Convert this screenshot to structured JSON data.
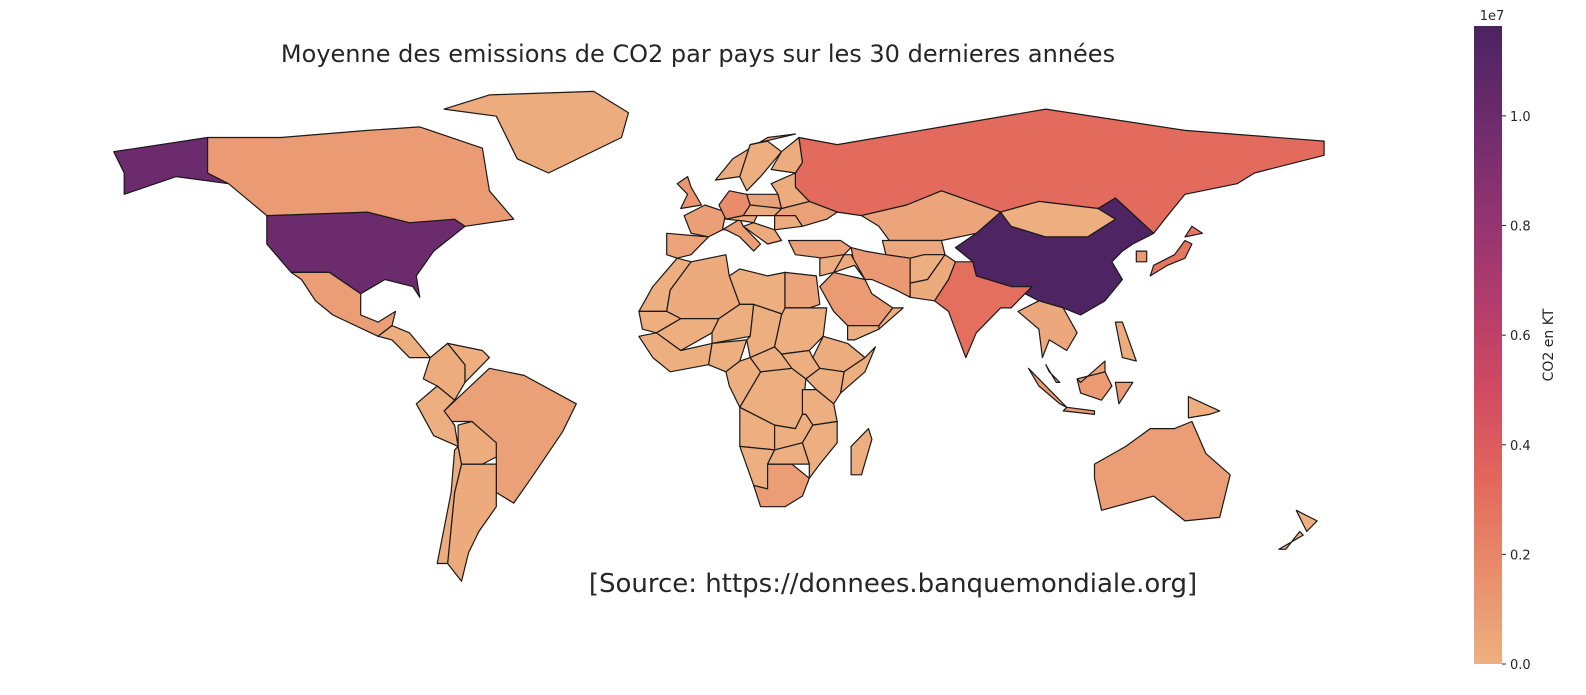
{
  "chart_data": {
    "type": "choropleth",
    "title": "Moyenne des emissions de CO2 par pays sur les 30 dernieres années",
    "annotation": "[Source: https://donnees.banquemondiale.org]",
    "colorbar_label": "CO2 en KT",
    "colorbar_offset": "1e7",
    "colormap": [
      "#edb081",
      "#e98d6b",
      "#e3685c",
      "#d14a61",
      "#b13c6c",
      "#8f3371",
      "#6c2b6d",
      "#4b2362"
    ],
    "ylim": [
      0,
      1.164
    ],
    "yticks": [
      {
        "value": 0,
        "label": "0.0"
      },
      {
        "value": 0.2,
        "label": "0.2"
      },
      {
        "value": 0.4,
        "label": "0.4"
      },
      {
        "value": 0.6,
        "label": "0.6"
      },
      {
        "value": 0.8,
        "label": "0.8"
      },
      {
        "value": 1,
        "label": "1.0"
      }
    ],
    "values": [
      1.0,
      1.15,
      0.32,
      0.3,
      0.27,
      0.1,
      0.02,
      0.09,
      0.01,
      0.07,
      0.03,
      0.02,
      0.01,
      0.01,
      0.02,
      0.02,
      0.01,
      0.03,
      0.01,
      0.05,
      0.01,
      0.01,
      0.01,
      0.01,
      0.01,
      0.02,
      0.01,
      0.01,
      0.01,
      0.01,
      0.01,
      0.01,
      0.01,
      0.01,
      0.01,
      0.09,
      0.01,
      0.01,
      0.01,
      0.01,
      0.01,
      0.06,
      0.08,
      0.17,
      0.08,
      0.12,
      0.07,
      0.07,
      0.02,
      0.01,
      0.02,
      0.03,
      0.07,
      0.02,
      0.01,
      0.05,
      0.01,
      0.04,
      0.11,
      0.1,
      0.01,
      0.03,
      0.03,
      0.11,
      0.04,
      0.1,
      0.05,
      0.02,
      0.01,
      0.09,
      0.01
    ]
  }
}
